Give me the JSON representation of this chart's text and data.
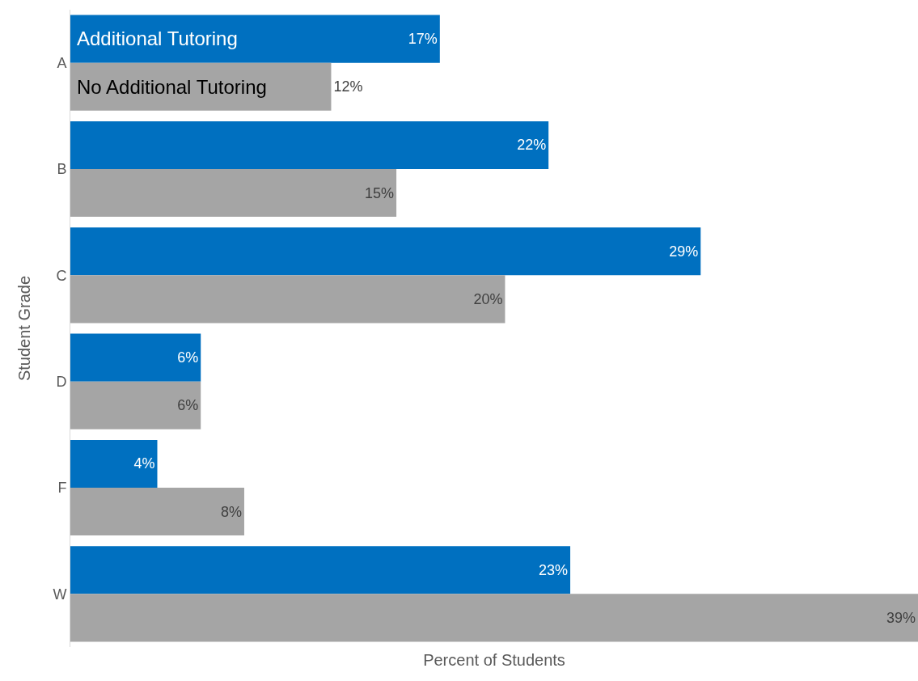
{
  "chart_data": {
    "type": "bar",
    "orientation": "horizontal",
    "xlabel": "Percent of Students",
    "ylabel": "Student Grade",
    "categories": [
      "A",
      "B",
      "C",
      "D",
      "F",
      "W"
    ],
    "xlim": [
      0,
      39
    ],
    "legend": false,
    "series": [
      {
        "name": "Additional Tutoring",
        "color": "#0070c0",
        "values": [
          17,
          22,
          29,
          6,
          4,
          23
        ],
        "value_labels": [
          "17%",
          "22%",
          "29%",
          "6%",
          "4%",
          "23%"
        ]
      },
      {
        "name": "No Additional Tutoring",
        "color": "#a5a5a5",
        "values": [
          12,
          15,
          20,
          6,
          8,
          39
        ],
        "value_labels": [
          "12%",
          "15%",
          "20%",
          "6%",
          "8%",
          "39%"
        ]
      }
    ]
  }
}
